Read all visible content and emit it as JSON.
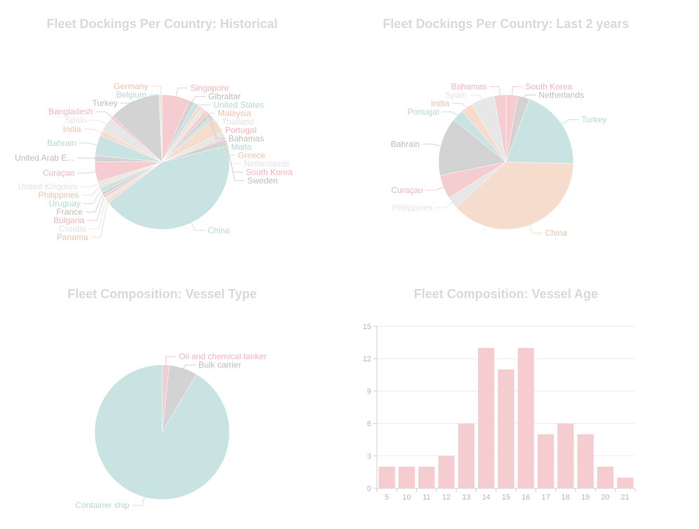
{
  "palette": [
    "#f5cccf",
    "#d3d3d3",
    "#c9e3e3",
    "#f6dccd",
    "#e7e7e7"
  ],
  "label_colors": [
    "#f3b5b8",
    "#bcbcbc",
    "#b4d8d8",
    "#f1c3aa",
    "#e2e2e2"
  ],
  "chart_data": [
    {
      "type": "pie",
      "title": "Fleet Dockings Per Country: Historical",
      "labels": [
        "Singapore",
        "Gibraltar",
        "United States",
        "Malaysia",
        "Thailand",
        "Portugal",
        "Bahamas",
        "Malta",
        "Greece",
        "Netherlands",
        "South Korea",
        "Sweden",
        "China",
        "Panama",
        "Croatia",
        "Bulgaria",
        "France",
        "Uruguay",
        "Philippines",
        "United Kingdom",
        "Curaçao",
        "United Arab E...",
        "Bahrain",
        "India",
        "Spain",
        "Bangladesh",
        "Turkey",
        "Belgium",
        "Germany"
      ],
      "values": [
        6.8,
        1.3,
        1.2,
        1.0,
        1.0,
        1.0,
        1.0,
        0.7,
        4.0,
        1.5,
        0.5,
        1.5,
        44.5,
        0.8,
        0.7,
        0.7,
        0.8,
        1.1,
        0.6,
        1.0,
        5.0,
        1.5,
        5.0,
        1.3,
        3.5,
        0.8,
        12.5,
        0.3,
        0.5
      ]
    },
    {
      "type": "pie",
      "title": "Fleet Dockings Per Country: Last 2 years",
      "labels": [
        "South Korea",
        "Netherlands",
        "Turkey",
        "China",
        "Philippines",
        "Curaçao",
        "Bahrain",
        "Portugal",
        "India",
        "Spain",
        "Bahamas"
      ],
      "values": [
        2.8,
        2.8,
        19.5,
        37.5,
        2.8,
        5.6,
        13.9,
        2.8,
        2.8,
        5.6,
        2.8
      ]
    },
    {
      "type": "pie",
      "title": "Fleet Composition: Vessel Type",
      "labels": [
        "Oil and chemical tanker",
        "Bulk carrier",
        "Container ship"
      ],
      "values": [
        1,
        4,
        54
      ]
    },
    {
      "type": "bar",
      "title": "Fleet Composition: Vessel Age",
      "categories": [
        "5",
        "10",
        "11",
        "12",
        "13",
        "14",
        "15",
        "16",
        "17",
        "18",
        "19",
        "20",
        "21"
      ],
      "values": [
        2,
        2,
        2,
        3,
        6,
        13,
        11,
        13,
        5,
        6,
        5,
        2,
        1
      ],
      "ylim": [
        0,
        15
      ],
      "yticks": [
        0,
        3,
        6,
        9,
        12,
        15
      ]
    }
  ]
}
